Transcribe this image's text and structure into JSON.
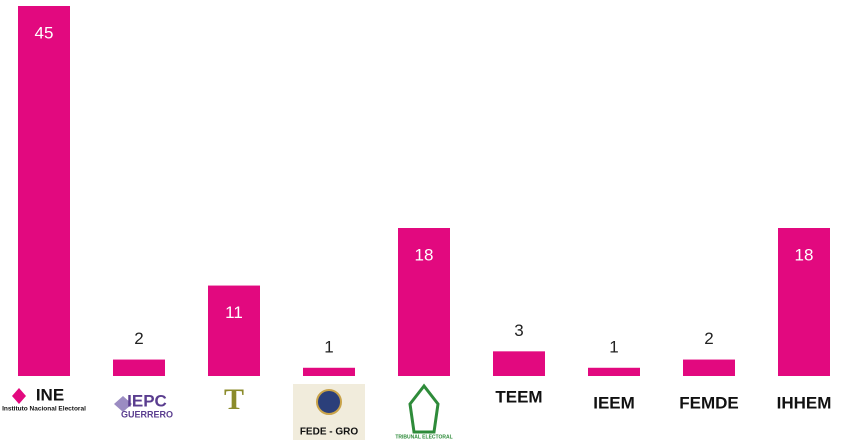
{
  "chart_data": {
    "type": "bar",
    "categories": [
      "INE",
      "IEPC",
      "T",
      "FEDE - GRO",
      "TRIBUNAL ELECTORAL",
      "TEEM",
      "IEEM",
      "FEMDE",
      "IHHEM"
    ],
    "category_sublabels": [
      "Instituto Nacional Electoral",
      "GUERRERO",
      null,
      null,
      null,
      null,
      null,
      null,
      null
    ],
    "values": [
      45,
      2,
      11,
      1,
      18,
      3,
      1,
      2,
      18
    ],
    "color": "#e2097f",
    "ylim": [
      0,
      45
    ]
  }
}
